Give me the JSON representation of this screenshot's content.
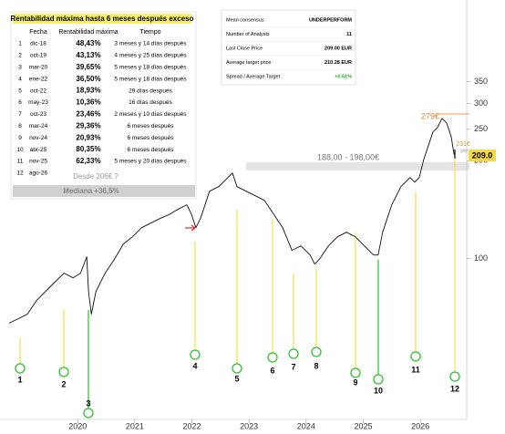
{
  "chart_data": {
    "type": "line",
    "color": "#111111",
    "log_scale": true,
    "x": [
      2018.8,
      2018.96,
      2019.12,
      2019.28,
      2019.44,
      2019.6,
      2019.76,
      2019.92,
      2020.05,
      2020.16,
      2020.19,
      2020.24,
      2020.32,
      2020.48,
      2020.64,
      2020.8,
      2020.96,
      2021.12,
      2021.28,
      2021.44,
      2021.59,
      2021.75,
      2021.91,
      2021.99,
      2022.07,
      2022.15,
      2022.31,
      2022.47,
      2022.63,
      2022.71,
      2022.79,
      2022.95,
      2023.11,
      2023.27,
      2023.43,
      2023.59,
      2023.75,
      2023.91,
      2024.07,
      2024.15,
      2024.23,
      2024.39,
      2024.55,
      2024.71,
      2024.86,
      2025.02,
      2025.18,
      2025.26,
      2025.34,
      2025.5,
      2025.66,
      2025.82,
      2025.9,
      2025.98,
      2026.06,
      2026.14,
      2026.22,
      2026.3,
      2026.38,
      2026.46,
      2026.54,
      2026.59
    ],
    "values": [
      63.3,
      65.3,
      67.5,
      74.3,
      79.3,
      84.6,
      90.2,
      87.3,
      90.2,
      101.3,
      79.3,
      67.5,
      79.3,
      90.2,
      99.4,
      110.9,
      116.7,
      124.5,
      128.6,
      132.8,
      136.3,
      141.7,
      146.4,
      137.2,
      124.5,
      132.8,
      161.2,
      166.5,
      177.6,
      183.4,
      166.5,
      161.2,
      156.1,
      151.1,
      137.2,
      124.5,
      106.0,
      109.4,
      102.6,
      96.2,
      99.4,
      109.4,
      116.7,
      120.6,
      116.7,
      109.4,
      102.6,
      102.6,
      120.6,
      146.4,
      166.5,
      177.6,
      171.9,
      177.6,
      202.0,
      222.6,
      245.2,
      253.2,
      270.2,
      261.4,
      237.5,
      209
    ],
    "xlim": [
      2018.64,
      2026.78
    ],
    "xticks": [
      2020,
      2021,
      2022,
      2023,
      2024,
      2025,
      2026
    ],
    "ylim": [
      32,
      625
    ],
    "yticks": [
      350,
      300,
      250,
      200,
      100
    ],
    "annotations": {
      "high": "279€",
      "range": "188,00 - 198,00€",
      "gap_price": "231€",
      "gap": "gap",
      "last": "209.0"
    }
  },
  "table": {
    "title": "Rentabilidad máxima hasta 6 meses después exceso",
    "headers": [
      "Fecha",
      "Rentabilidad máxima",
      "Tiempo"
    ],
    "rows": [
      [
        "1",
        "dic-18",
        "48,43%",
        "3 meses y 14 días después"
      ],
      [
        "2",
        "oct-19",
        "43,13%",
        "4 meses y 25 días después"
      ],
      [
        "3",
        "mar-20",
        "39,65%",
        "5 meses y 18 días después"
      ],
      [
        "4",
        "ene-22",
        "36,50%",
        "5 meses y 18 días después"
      ],
      [
        "5",
        "oct-22",
        "18,93%",
        "29 días después"
      ],
      [
        "6",
        "may-23",
        "10,36%",
        "16 días después"
      ],
      [
        "7",
        "oct-23",
        "23,46%",
        "2 meses y 10 días después"
      ],
      [
        "8",
        "mar-24",
        "29,36%",
        "6 meses después"
      ],
      [
        "9",
        "nov-24",
        "20,93%",
        "6 meses después"
      ],
      [
        "10",
        "abr-25",
        "80,35%",
        "6 meses después"
      ],
      [
        "11",
        "nov-25",
        "62,33%",
        "5 meses y 20 días después"
      ],
      [
        "12",
        "ago-26",
        "Desde 206€ ?"
      ]
    ],
    "median": "Mediana +36,5%"
  },
  "consensus": {
    "rows": [
      [
        "Mean consensus",
        "UNDERPERFORM"
      ],
      [
        "Number of Analysts",
        "11"
      ],
      [
        "Last Close Price",
        "209.00 EUR"
      ],
      [
        "Average target price",
        "210.28 EUR"
      ],
      [
        "Spread / Average Target",
        "+0.61%"
      ]
    ]
  }
}
